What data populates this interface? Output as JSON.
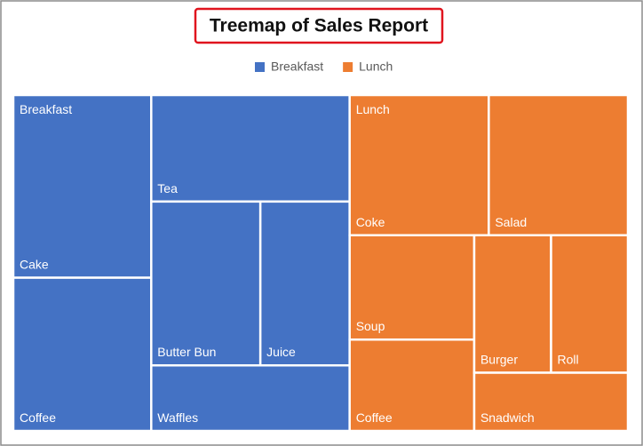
{
  "chart_data": {
    "type": "treemap",
    "title": "Treemap of Sales Report",
    "series": [
      {
        "name": "Breakfast",
        "color": "#4472c4",
        "categories": [
          "Cake",
          "Coffee",
          "Tea",
          "Butter Bun",
          "Juice",
          "Waffles"
        ],
        "values": [
          31,
          26,
          26,
          22,
          18,
          16
        ]
      },
      {
        "name": "Lunch",
        "color": "#ed7d31",
        "categories": [
          "Coke",
          "Salad",
          "Soup",
          "Coffee",
          "Burger",
          "Roll",
          "Snadwich"
        ],
        "values": [
          24,
          24,
          16,
          14,
          13,
          13,
          11
        ]
      }
    ]
  }
}
